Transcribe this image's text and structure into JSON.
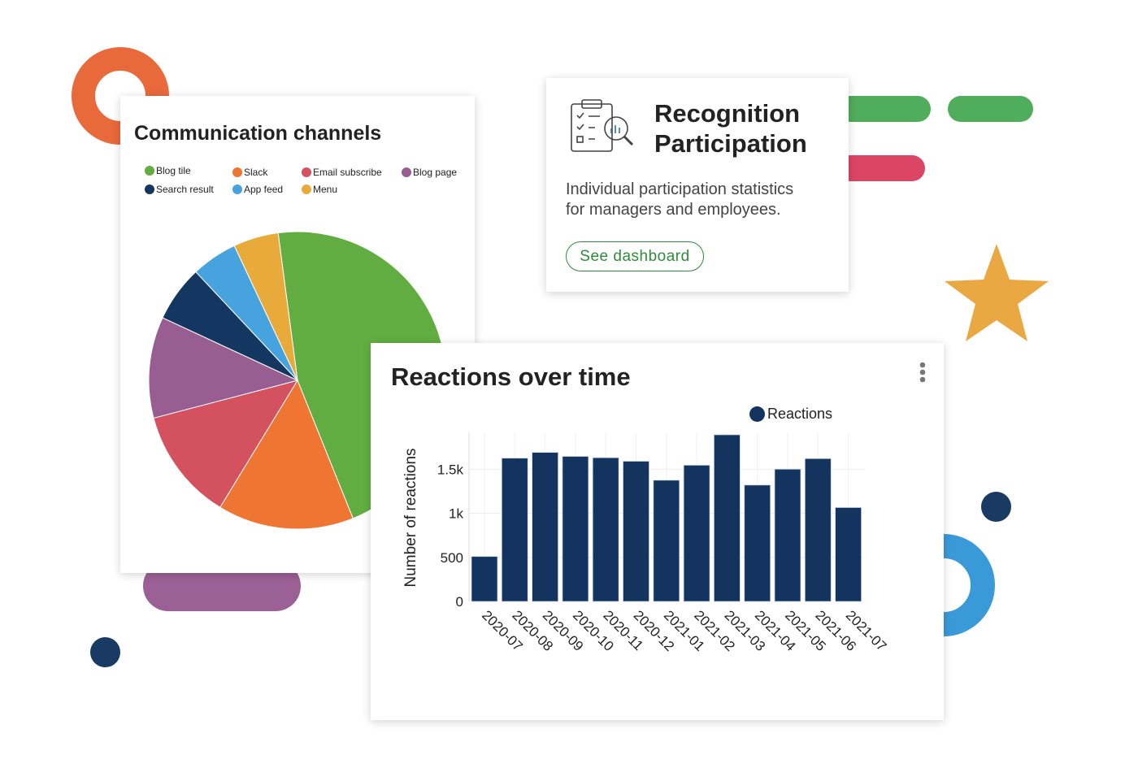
{
  "colors": {
    "orange": "#e8693a",
    "green": "#4fad5b",
    "red": "#dc4564",
    "star": "#eaa843",
    "navy": "#183a63",
    "blue": "#3a9ad8",
    "purple": "#9b6095",
    "bar": "#13345f"
  },
  "pie_card": {
    "title": "Communication channels"
  },
  "recognition_card": {
    "icon": "clipboard-checklist-magnifier-icon",
    "title_line1": "Recognition",
    "title_line2": "Participation",
    "description_line1": "Individual participation statistics",
    "description_line2": "for managers and employees.",
    "button_label": "See dashboard"
  },
  "bar_card": {
    "title": "Reactions over time",
    "menu_icon": "vertical-dots-icon"
  },
  "chart_data": [
    {
      "type": "pie",
      "title": "Communication channels",
      "legend_position": "top",
      "slices": [
        {
          "name": "Blog tile",
          "value": 46.0,
          "color": "#62ad41"
        },
        {
          "name": "Slack",
          "value": 14.8,
          "color": "#ef7532"
        },
        {
          "name": "Email subscribe",
          "value": 12.2,
          "color": "#d45160"
        },
        {
          "name": "Blog page",
          "value": 11.0,
          "color": "#985d91"
        },
        {
          "name": "Search result",
          "value": 6.1,
          "color": "#133760"
        },
        {
          "name": "App feed",
          "value": 5.0,
          "color": "#46a3dd"
        },
        {
          "name": "Menu",
          "value": 4.9,
          "color": "#e9aa3c"
        }
      ],
      "legend_order": [
        "Blog tile",
        "Slack",
        "Email subscribe",
        "Blog page",
        "Search result",
        "App feed",
        "Menu"
      ]
    },
    {
      "type": "bar",
      "title": "Reactions over time",
      "xlabel": "",
      "ylabel": "Number of reactions",
      "ylim": [
        0,
        1900
      ],
      "yticks": [
        0,
        500,
        1000,
        1500
      ],
      "ytick_labels": [
        "0",
        "500",
        "1k",
        "1.5k"
      ],
      "grid": true,
      "legend_position": "top-right",
      "categories": [
        "2020-07",
        "2020-08",
        "2020-09",
        "2020-10",
        "2020-11",
        "2020-12",
        "2021-01",
        "2021-02",
        "2021-03",
        "2021-04",
        "2021-05",
        "2021-06",
        "2021-07"
      ],
      "series": [
        {
          "name": "Reactions",
          "color": "#13345f",
          "values": [
            510,
            1625,
            1690,
            1645,
            1630,
            1590,
            1375,
            1545,
            1890,
            1320,
            1500,
            1620,
            1065
          ]
        }
      ]
    }
  ]
}
